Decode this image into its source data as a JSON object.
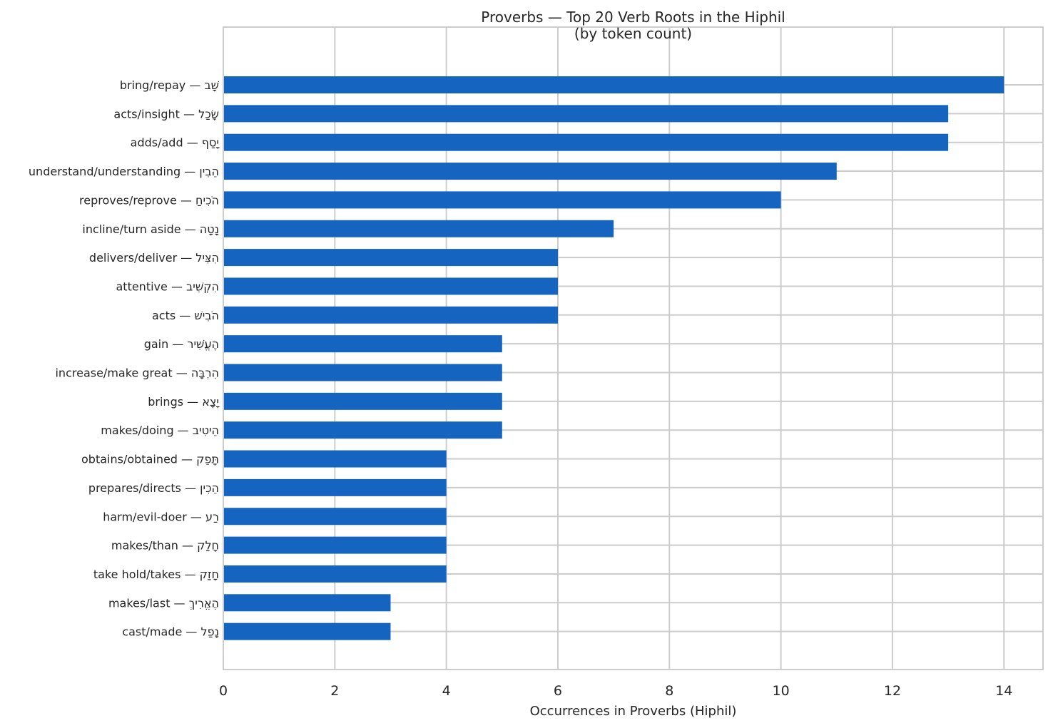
{
  "chart_data": {
    "type": "bar",
    "orientation": "horizontal",
    "title": "Proverbs — Top 20 Verb Roots in the Hiphil",
    "subtitle": "(by token count)",
    "xlabel": "Occurrences in Proverbs (Hiphil)",
    "ylabel": "",
    "xlim": [
      0,
      14.7
    ],
    "xticks": [
      0,
      2,
      4,
      6,
      8,
      10,
      12,
      14
    ],
    "grid": true,
    "legend": "none",
    "bar_color": "#1565c0",
    "categories": [
      "bring/repay — שָׁב",
      "acts/insight — שָׂכַל",
      "adds/add — יָסַף",
      "understand/understanding — הֵבִין",
      "reproves/reprove — הֹכִיחַ",
      "incline/turn aside — נָטָה",
      "delivers/deliver — הִצִּיל",
      "attentive — הִקְשִׁיב",
      "acts — הֹבִישׁ",
      "gain — הֶעֱשִׁיר",
      "increase/make great — הִרְבָּה",
      "brings — יָצָא",
      "makes/doing — הֵיטִיב",
      "obtains/obtained — תָּפֵק",
      "prepares/directs — הֵכִין",
      "harm/evil-doer — רַע",
      "makes/than — חָלַק",
      "take hold/takes — חָזַק",
      "makes/last — הֶאֱרִיךְ",
      "cast/made — נָפַל"
    ],
    "values": [
      14,
      13,
      13,
      11,
      10,
      7,
      6,
      6,
      6,
      5,
      5,
      5,
      5,
      4,
      4,
      4,
      4,
      4,
      3,
      3
    ]
  }
}
